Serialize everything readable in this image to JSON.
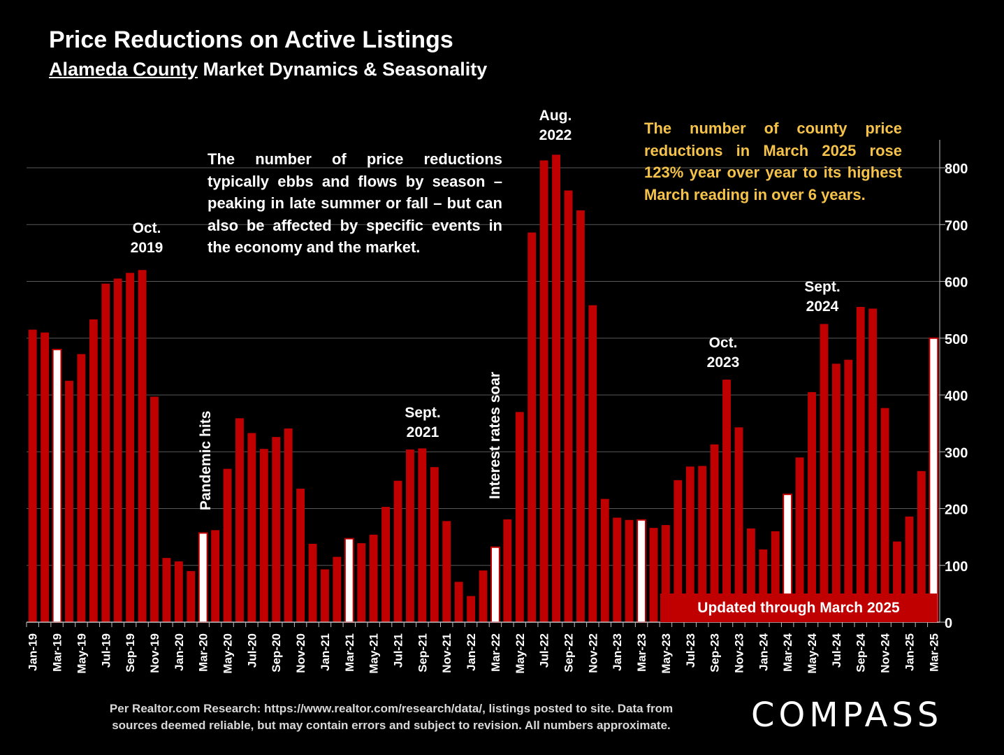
{
  "title": "Price Reductions on Active Listings",
  "subtitle_underlined": "Alameda County",
  "subtitle_rest": " Market Dynamics & Seasonality",
  "note_left": "The number of price reductions typically ebbs and flows by season – peaking in late summer or fall – but can also be affected by specific events in the economy and the market.",
  "note_right": "The number of county price reductions in March 2025 rose 123% year over year to its highest March reading in over 6 years.",
  "badge": "Updated through March 2025",
  "footer_line1": "Per Realtor.com Research:  https://www.realtor.com/research/data/, listings posted to site. Data from",
  "footer_line2": "sources deemed reliable, but may contain errors and subject to revision. All numbers approximate.",
  "logo": "COMPASS",
  "annotations": {
    "oct2019_a": "Oct.",
    "oct2019_b": "2019",
    "pandemic": "Pandemic hits",
    "sept2021_a": "Sept.",
    "sept2021_b": "2021",
    "rates": "Interest rates soar",
    "aug2022_a": "Aug.",
    "aug2022_b": "2022",
    "oct2023_a": "Oct.",
    "oct2023_b": "2023",
    "sept2024_a": "Sept.",
    "sept2024_b": "2024"
  },
  "colors": {
    "bar": "#c00000",
    "highlight": "#ffffff",
    "note_accent": "#f5c24a"
  },
  "chart_data": {
    "type": "bar",
    "ylim": [
      0,
      850
    ],
    "yticks": [
      0,
      100,
      200,
      300,
      400,
      500,
      600,
      700,
      800
    ],
    "y_axis_side": "right",
    "grid": true,
    "categories": [
      "Jan-19",
      "Feb-19",
      "Mar-19",
      "Apr-19",
      "May-19",
      "Jun-19",
      "Jul-19",
      "Aug-19",
      "Sep-19",
      "Oct-19",
      "Nov-19",
      "Dec-19",
      "Jan-20",
      "Feb-20",
      "Mar-20",
      "Apr-20",
      "May-20",
      "Jun-20",
      "Jul-20",
      "Aug-20",
      "Sep-20",
      "Oct-20",
      "Nov-20",
      "Dec-20",
      "Jan-21",
      "Feb-21",
      "Mar-21",
      "Apr-21",
      "May-21",
      "Jun-21",
      "Jul-21",
      "Aug-21",
      "Sep-21",
      "Oct-21",
      "Nov-21",
      "Dec-21",
      "Jan-22",
      "Feb-22",
      "Mar-22",
      "Apr-22",
      "May-22",
      "Jun-22",
      "Jul-22",
      "Aug-22",
      "Sep-22",
      "Oct-22",
      "Nov-22",
      "Dec-22",
      "Jan-23",
      "Feb-23",
      "Mar-23",
      "Apr-23",
      "May-23",
      "Jun-23",
      "Jul-23",
      "Aug-23",
      "Sep-23",
      "Oct-23",
      "Nov-23",
      "Dec-23",
      "Jan-24",
      "Feb-24",
      "Mar-24",
      "Apr-24",
      "May-24",
      "Jun-24",
      "Jul-24",
      "Aug-24",
      "Sep-24",
      "Oct-24",
      "Nov-24",
      "Dec-24",
      "Jan-25",
      "Feb-25",
      "Mar-25"
    ],
    "tick_labels": [
      "Jan-19",
      "Mar-19",
      "May-19",
      "Jul-19",
      "Sep-19",
      "Nov-19",
      "Jan-20",
      "Mar-20",
      "May-20",
      "Jul-20",
      "Sep-20",
      "Nov-20",
      "Jan-21",
      "Mar-21",
      "May-21",
      "Jul-21",
      "Sep-21",
      "Nov-21",
      "Jan-22",
      "Mar-22",
      "May-22",
      "Jul-22",
      "Sep-22",
      "Nov-22",
      "Jan-23",
      "Mar-23",
      "May-23",
      "Jul-23",
      "Sep-23",
      "Nov-23",
      "Jan-24",
      "Mar-24",
      "May-24",
      "Jul-24",
      "Sep-24",
      "Nov-24",
      "Jan-25",
      "Mar-25"
    ],
    "values": [
      515,
      510,
      480,
      425,
      472,
      533,
      596,
      605,
      615,
      620,
      397,
      113,
      107,
      90,
      157,
      162,
      270,
      359,
      333,
      305,
      326,
      341,
      235,
      138,
      93,
      115,
      147,
      139,
      154,
      203,
      249,
      304,
      306,
      273,
      178,
      71,
      46,
      91,
      132,
      181,
      370,
      686,
      813,
      823,
      760,
      725,
      558,
      217,
      184,
      180,
      180,
      166,
      171,
      250,
      274,
      275,
      313,
      427,
      343,
      165,
      128,
      160,
      225,
      290,
      405,
      525,
      455,
      462,
      555,
      552,
      377,
      142,
      186,
      266,
      500
    ],
    "highlight_months": [
      "Mar-19",
      "Mar-20",
      "Mar-21",
      "Mar-22",
      "Mar-23",
      "Mar-24",
      "Mar-25"
    ]
  }
}
